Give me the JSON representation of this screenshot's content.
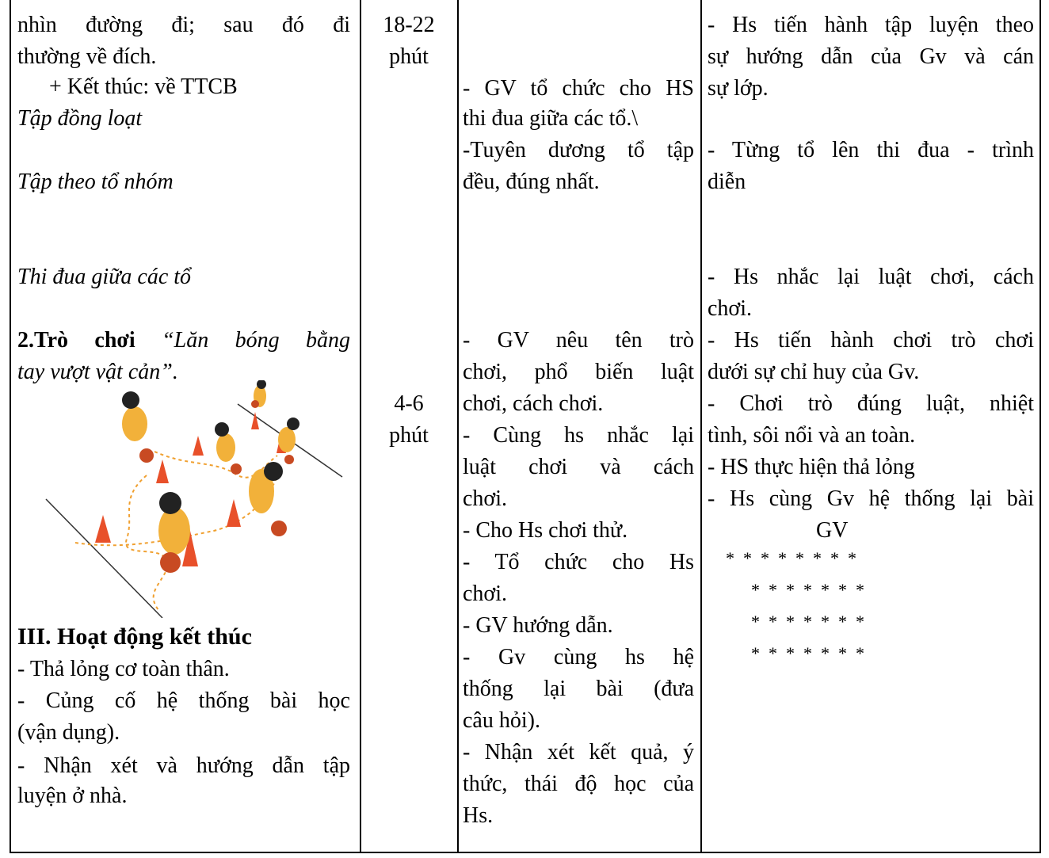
{
  "table": {
    "content": [
      "nhìn đường đi; sau đó đi",
      "thường về đích.",
      "+ Kết thúc: về TTCB",
      "Tập đồng loạt",
      "Tập theo tổ nhóm",
      "Thi đua giữa các tổ",
      {
        "bold": "2.Trò chơi",
        "italic": "“Lăn bóng bằng"
      },
      "tay vượt vật cản”.",
      "III. Hoạt động kết thúc",
      "- Thả lỏng cơ toàn thân.",
      "- Củng cố hệ thống bài học",
      "(vận dụng).",
      "- Nhận xét và hướng dẫn tập",
      "luyện ở nhà."
    ],
    "time": [
      "18-22",
      "phút",
      "4-6",
      "phút"
    ],
    "teacher": [
      "- GV tổ chức cho HS",
      "thi đua giữa các tổ.\\",
      "-Tuyên dương tổ tập",
      "đều, đúng nhất.",
      "- GV nêu tên trò",
      "chơi, phổ biến luật",
      "chơi, cách chơi.",
      " - Cùng hs nhắc lại",
      "luật chơi và cách",
      "chơi.",
      "- Cho Hs chơi thử.",
      "- Tổ chức cho Hs",
      "chơi.",
      "- GV hướng dẫn.",
      "- Gv cùng hs hệ",
      "thống lại bài (đưa",
      "câu hỏi).",
      "- Nhận xét kết quả, ý",
      "thức, thái độ học của",
      "Hs."
    ],
    "students": [
      "- Hs tiến hành tập luyện theo",
      "sự hướng dẫn của Gv và cán",
      "sự lớp.",
      "- Từng tổ  lên  thi đua - trình",
      "diễn",
      "- Hs nhắc lại luật chơi, cách",
      "chơi.",
      "- Hs tiến hành chơi trò chơi",
      "dưới sự chỉ huy của Gv.",
      "- Chơi trò đúng luật, nhiệt",
      "tình, sôi nổi và an toàn.",
      "- HS thực hiện thả lỏng",
      "- Hs cùng Gv hệ thống lại bài",
      "GV",
      "*  *  *  *  *  *  *  *",
      "*  *  *  *  *  *  *",
      "*  *  *  *  *  *  *",
      "*  *  *  *  *  *  *"
    ]
  }
}
